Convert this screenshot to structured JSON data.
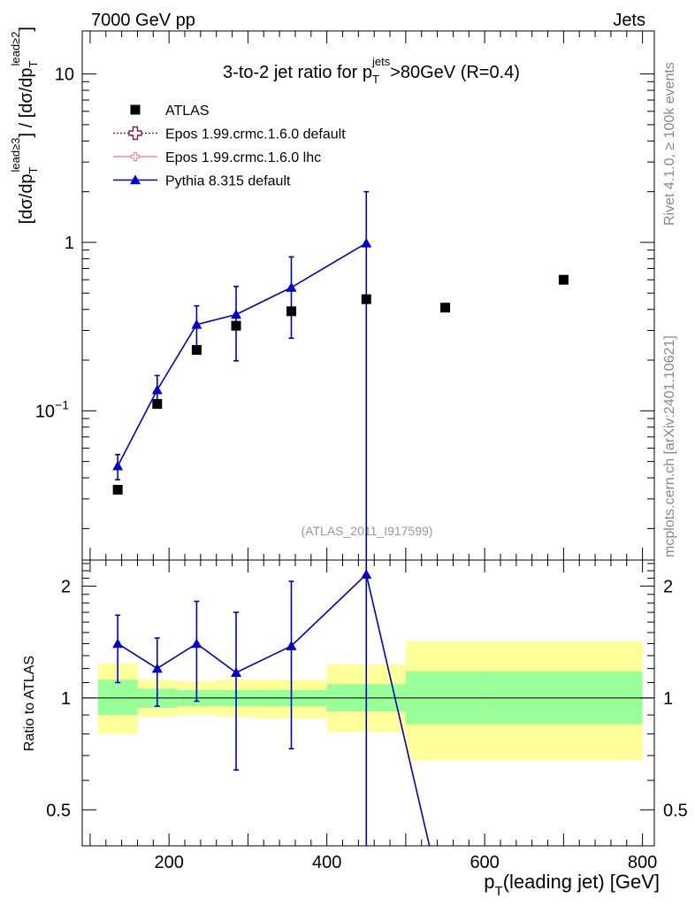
{
  "header": {
    "left": "7000 GeV pp",
    "right": "Jets"
  },
  "side_labels": {
    "rivet": "Rivet 4.1.0, ≥ 100k events",
    "mcplots": "mcplots.cern.ch [arXiv:2401.10621]"
  },
  "chart_data": {
    "type": "scatter",
    "title": "3-to-2 jet ratio for p_T^jets > 80GeV (R=0.4)",
    "title_parts": {
      "a": "3-to-2 jet ratio for p",
      "sub": "T",
      "sup": "jets",
      "b": ">80GeV (R=0.4)"
    },
    "analysis_tag": "(ATLAS_2011_I917599)",
    "xlabel": "p_T(leading jet) [GeV]",
    "xlabel_parts": {
      "a": "p",
      "sub": "T",
      "b": "(leading jet) [GeV]"
    },
    "ylabel": "[dσ/dp_T^{lead≥3}] / [dσ/dp_T^{lead≥2}]",
    "ylabel_parts": {
      "a": "[dσ/dp",
      "sub1": "T",
      "sup1": "lead≥3",
      "b": "] / [dσ/dp",
      "sub2": "T",
      "sup2": "lead≥2",
      "c": "]"
    },
    "ratio_ylabel": "Ratio to ATLAS",
    "xlim": [
      90,
      815
    ],
    "ylim": [
      0.013,
      18
    ],
    "yscale": "log",
    "ratio_ylim": [
      0.4,
      2.35
    ],
    "ratio_yscale": "log",
    "x_ticks": [
      200,
      400,
      600,
      800
    ],
    "x_tick_labels": [
      "200",
      "400",
      "600",
      "800"
    ],
    "y_tick_labels": [
      {
        "value": 10,
        "label": "10"
      },
      {
        "value": 1,
        "label": "1"
      },
      {
        "value": 0.1,
        "label": "10",
        "exp": "−1"
      }
    ],
    "ratio_tick_labels": [
      {
        "value": 2,
        "label": "2"
      },
      {
        "value": 1,
        "label": "1"
      },
      {
        "value": 0.5,
        "label": "0.5"
      }
    ],
    "legend_position": "top-left",
    "legend": [
      {
        "name": "ATLAS",
        "marker": "square",
        "color": "#000000"
      },
      {
        "name": "Epos 1.99.crmc.1.6.0 default",
        "marker": "open-cross",
        "color": "#7f1f3f",
        "dash": "dotted"
      },
      {
        "name": "Epos 1.99.crmc.1.6.0 lhc",
        "marker": "small-cross",
        "color": "#ef8f8f"
      },
      {
        "name": "Pythia 8.315 default",
        "marker": "triangle",
        "color": "#0000cc"
      }
    ],
    "bins": [
      [
        110,
        160
      ],
      [
        160,
        210
      ],
      [
        210,
        260
      ],
      [
        260,
        310
      ],
      [
        310,
        400
      ],
      [
        400,
        500
      ],
      [
        500,
        600
      ],
      [
        600,
        800
      ]
    ],
    "data": {
      "name": "ATLAS",
      "x": [
        135,
        185,
        235,
        285,
        355,
        450,
        550,
        700
      ],
      "y": [
        0.034,
        0.11,
        0.23,
        0.32,
        0.39,
        0.46,
        0.41,
        0.6
      ]
    },
    "series": [
      {
        "name": "Pythia 8.315 default",
        "x": [
          135,
          185,
          235,
          285,
          355,
          450
        ],
        "y": [
          0.047,
          0.133,
          0.325,
          0.373,
          0.54,
          0.99
        ],
        "err_low": [
          0.008,
          0.029,
          0.095,
          0.175,
          0.27,
          0.98
        ],
        "err_high": [
          0.008,
          0.029,
          0.095,
          0.175,
          0.28,
          1.01
        ]
      }
    ],
    "ratio_series": {
      "x": [
        135,
        185,
        235,
        285,
        355,
        450
      ],
      "y": [
        1.4,
        1.2,
        1.4,
        1.17,
        1.38,
        2.15
      ],
      "err_low": [
        0.3,
        0.25,
        0.42,
        0.53,
        0.65,
        2.15
      ],
      "err_high": [
        0.27,
        0.25,
        0.42,
        0.53,
        0.68,
        2.15
      ],
      "line_end": {
        "x": 530,
        "y": 0.4
      }
    },
    "ratio_bands": {
      "inner": [
        {
          "x0": 110,
          "x1": 160,
          "lo": 0.9,
          "hi": 1.12
        },
        {
          "x0": 160,
          "x1": 210,
          "lo": 0.94,
          "hi": 1.06
        },
        {
          "x0": 210,
          "x1": 260,
          "lo": 0.95,
          "hi": 1.05
        },
        {
          "x0": 260,
          "x1": 310,
          "lo": 0.95,
          "hi": 1.05
        },
        {
          "x0": 310,
          "x1": 400,
          "lo": 0.95,
          "hi": 1.05
        },
        {
          "x0": 400,
          "x1": 500,
          "lo": 0.92,
          "hi": 1.09
        },
        {
          "x0": 500,
          "x1": 600,
          "lo": 0.85,
          "hi": 1.18
        },
        {
          "x0": 600,
          "x1": 800,
          "lo": 0.85,
          "hi": 1.18
        }
      ],
      "outer": [
        {
          "x0": 110,
          "x1": 160,
          "lo": 0.8,
          "hi": 1.24
        },
        {
          "x0": 160,
          "x1": 210,
          "lo": 0.89,
          "hi": 1.12
        },
        {
          "x0": 210,
          "x1": 260,
          "lo": 0.9,
          "hi": 1.11
        },
        {
          "x0": 260,
          "x1": 310,
          "lo": 0.89,
          "hi": 1.12
        },
        {
          "x0": 310,
          "x1": 400,
          "lo": 0.88,
          "hi": 1.12
        },
        {
          "x0": 400,
          "x1": 500,
          "lo": 0.81,
          "hi": 1.23
        },
        {
          "x0": 500,
          "x1": 600,
          "lo": 0.68,
          "hi": 1.42
        },
        {
          "x0": 600,
          "x1": 800,
          "lo": 0.68,
          "hi": 1.42
        }
      ]
    },
    "colors": {
      "data": "#000000",
      "mc": "#0000cc",
      "band_inner": "#99ff99",
      "band_outer": "#ffff99",
      "side_text": "#888888"
    }
  }
}
